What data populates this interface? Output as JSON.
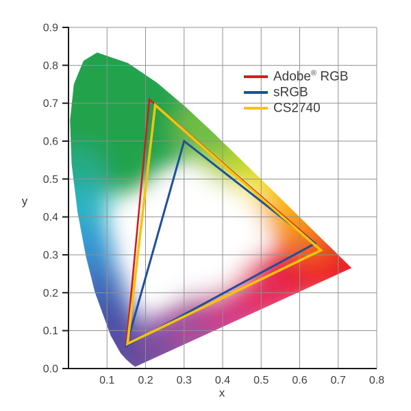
{
  "legend": {
    "items": [
      {
        "name": "Adobe",
        "sup": "®",
        "rest": " RGB",
        "color": "#D71920"
      },
      {
        "name": "sRGB",
        "sup": "",
        "rest": "",
        "color": "#1D4E9C"
      },
      {
        "name": "CS2740",
        "sup": "",
        "rest": "",
        "color": "#F6C40A"
      }
    ]
  },
  "chart_data": {
    "type": "area",
    "subtype": "CIE 1931 xy chromaticity diagram with color gamut triangles",
    "title": "",
    "xlabel": "x",
    "ylabel": "y",
    "xlim": [
      0,
      0.8
    ],
    "ylim": [
      0,
      0.9
    ],
    "grid": true,
    "legend_position": "upper right inside plot",
    "x_ticks": [
      "0.1",
      "0.2",
      "0.3",
      "0.4",
      "0.5",
      "0.6",
      "0.7",
      "0.8"
    ],
    "y_ticks": [
      "0.0",
      "0.1",
      "0.2",
      "0.3",
      "0.4",
      "0.5",
      "0.6",
      "0.7",
      "0.8",
      "0.9"
    ],
    "series": [
      {
        "name": "Adobe RGB",
        "color": "#D71920",
        "width": 2.6,
        "points": [
          [
            0.64,
            0.33
          ],
          [
            0.21,
            0.71
          ],
          [
            0.15,
            0.06
          ]
        ]
      },
      {
        "name": "sRGB",
        "color": "#1D4E9C",
        "width": 3,
        "points": [
          [
            0.64,
            0.33
          ],
          [
            0.3,
            0.6
          ],
          [
            0.15,
            0.06
          ]
        ]
      },
      {
        "name": "CS2740",
        "color": "#F6C40A",
        "width": 3.6,
        "points": [
          [
            0.655,
            0.312
          ],
          [
            0.225,
            0.695
          ],
          [
            0.153,
            0.065
          ]
        ]
      }
    ],
    "spectral_locus": [
      [
        0.1741,
        0.005
      ],
      [
        0.1726,
        0.0048
      ],
      [
        0.1644,
        0.0109
      ],
      [
        0.151,
        0.0227
      ],
      [
        0.1355,
        0.0399
      ],
      [
        0.1096,
        0.0868
      ],
      [
        0.0687,
        0.2007
      ],
      [
        0.0454,
        0.295
      ],
      [
        0.0235,
        0.4127
      ],
      [
        0.0082,
        0.5384
      ],
      [
        0.0039,
        0.6548
      ],
      [
        0.0139,
        0.7502
      ],
      [
        0.0389,
        0.812
      ],
      [
        0.0743,
        0.8338
      ],
      [
        0.1547,
        0.8059
      ],
      [
        0.2296,
        0.7543
      ],
      [
        0.3016,
        0.6923
      ],
      [
        0.3731,
        0.6245
      ],
      [
        0.4441,
        0.5547
      ],
      [
        0.5125,
        0.4866
      ],
      [
        0.5752,
        0.4242
      ],
      [
        0.627,
        0.3725
      ],
      [
        0.6658,
        0.334
      ],
      [
        0.6915,
        0.3083
      ],
      [
        0.7204,
        0.2794
      ],
      [
        0.7347,
        0.2653
      ]
    ],
    "color_wash": [
      [
        0.09,
        0.76,
        80,
        "#21A24B"
      ],
      [
        0.18,
        0.7,
        72,
        "#21A24B"
      ],
      [
        0.05,
        0.62,
        70,
        "#21A24B"
      ],
      [
        0.13,
        0.58,
        66,
        "#21A24B"
      ],
      [
        0.24,
        0.63,
        56,
        "#21A24B"
      ],
      [
        0.3,
        0.67,
        48,
        "#21A24B"
      ],
      [
        0.02,
        0.5,
        48,
        "#25AB87"
      ],
      [
        0.03,
        0.41,
        42,
        "#2BB3C4"
      ],
      [
        0.05,
        0.31,
        40,
        "#3396D2"
      ],
      [
        0.075,
        0.215,
        40,
        "#3C72BE"
      ],
      [
        0.105,
        0.13,
        40,
        "#4456AA"
      ],
      [
        0.14,
        0.055,
        40,
        "#4F4AA0"
      ],
      [
        0.185,
        0.025,
        42,
        "#5D4B9F"
      ],
      [
        0.26,
        0.065,
        46,
        "#7F4D9E"
      ],
      [
        0.345,
        0.115,
        48,
        "#A94D9B"
      ],
      [
        0.43,
        0.165,
        48,
        "#D23A88"
      ],
      [
        0.52,
        0.215,
        48,
        "#E62E62"
      ],
      [
        0.61,
        0.265,
        48,
        "#E8203A"
      ],
      [
        0.7,
        0.295,
        56,
        "#EC1C27"
      ],
      [
        0.63,
        0.345,
        40,
        "#F05A24"
      ],
      [
        0.585,
        0.4,
        42,
        "#F68B1F"
      ],
      [
        0.54,
        0.46,
        44,
        "#FBB40D"
      ],
      [
        0.475,
        0.525,
        44,
        "#F4E41C"
      ],
      [
        0.415,
        0.575,
        46,
        "#B8D433"
      ],
      [
        0.355,
        0.635,
        46,
        "#6FBE45"
      ],
      [
        0.335,
        0.345,
        85,
        "#FFFFFF"
      ],
      [
        0.41,
        0.375,
        55,
        "#FFFFFF"
      ]
    ],
    "colors": {
      "grid": "#909090",
      "axis": "#1a1a1a",
      "tick_text": "#3f3f3f",
      "background": "#ffffff"
    }
  }
}
